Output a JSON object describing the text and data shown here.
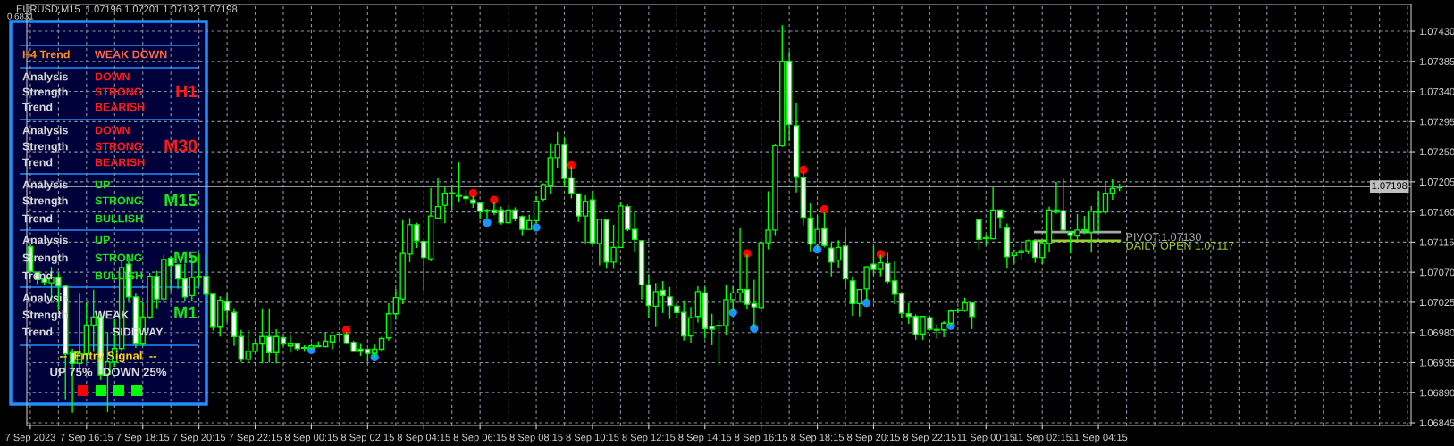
{
  "chart_data": [
    {
      "type": "candlestick",
      "title": "EURUSD,M15  1.07196 1.07201 1.07192 1.07198",
      "annotations": [
        "0.6831"
      ],
      "categories": [
        "7 Sep 2023",
        null,
        null,
        null,
        null,
        null,
        null,
        null,
        "7 Sep 16:15",
        null,
        null,
        null,
        null,
        null,
        null,
        null,
        "7 Sep 18:15",
        null,
        null,
        null,
        null,
        null,
        null,
        null,
        "7 Sep 20:15",
        null,
        null,
        null,
        null,
        null,
        null,
        null,
        "7 Sep 22:15",
        null,
        null,
        null,
        null,
        null,
        null,
        null,
        "8 Sep 00:15",
        null,
        null,
        null,
        null,
        null,
        null,
        null,
        "8 Sep 02:15",
        null,
        null,
        null,
        null,
        null,
        null,
        null,
        "8 Sep 04:15",
        null,
        null,
        null,
        null,
        null,
        null,
        null,
        "8 Sep 06:15",
        null,
        null,
        null,
        null,
        null,
        null,
        null,
        "8 Sep 08:15",
        null,
        null,
        null,
        null,
        null,
        null,
        null,
        "8 Sep 10:15",
        null,
        null,
        null,
        null,
        null,
        null,
        null,
        "8 Sep 12:15",
        null,
        null,
        null,
        null,
        null,
        null,
        null,
        "8 Sep 14:15",
        null,
        null,
        null,
        null,
        null,
        null,
        null,
        "8 Sep 16:15",
        null,
        null,
        null,
        null,
        null,
        null,
        null,
        "8 Sep 18:15",
        null,
        null,
        null,
        null,
        null,
        null,
        null,
        "8 Sep 20:15",
        null,
        null,
        null,
        null,
        null,
        null,
        null,
        "8 Sep 22:15",
        null,
        null,
        null,
        null,
        null,
        null,
        null,
        "11 Sep 00:15",
        null,
        null,
        null,
        null,
        null,
        null,
        null,
        "11 Sep 02:15",
        null,
        null,
        null,
        null,
        null,
        null,
        null,
        "11 Sep 04:15",
        null,
        null,
        null,
        null,
        null,
        null,
        null,
        null,
        null,
        null,
        null,
        null,
        null,
        null,
        null,
        null,
        null,
        null,
        null,
        null,
        null,
        null,
        null,
        null,
        null,
        null,
        null,
        null,
        null,
        null,
        null,
        null,
        null,
        null,
        null,
        null,
        null,
        null,
        null,
        null,
        null,
        null,
        null,
        null
      ],
      "ohlc": [
        [
          1.07108,
          1.0711,
          1.07068,
          1.07071
        ],
        [
          1.0707,
          1.0707,
          1.07053,
          1.07059
        ],
        [
          1.0706,
          1.07064,
          1.07051,
          1.07055
        ],
        [
          1.07054,
          1.07077,
          1.07028,
          1.07062
        ],
        [
          1.07062,
          1.07068,
          1.07015,
          1.07049
        ],
        [
          1.07049,
          1.07049,
          1.06881,
          1.06948
        ],
        [
          1.0695,
          1.06955,
          1.06861,
          1.06934
        ],
        [
          1.06934,
          1.07037,
          1.0692,
          1.06948
        ],
        [
          1.06948,
          1.07024,
          1.06937,
          1.06991
        ],
        [
          1.06991,
          1.07043,
          1.06952,
          1.07003
        ],
        [
          1.07003,
          1.07006,
          1.0691,
          1.06917
        ],
        [
          1.06918,
          1.0698,
          1.06862,
          1.06936
        ],
        [
          1.06936,
          1.06999,
          1.0693,
          1.06956
        ],
        [
          1.06956,
          1.07086,
          1.06952,
          1.07077
        ],
        [
          1.07082,
          1.07095,
          1.07028,
          1.07033
        ],
        [
          1.07033,
          1.07037,
          1.06958,
          1.06963
        ],
        [
          1.06963,
          1.07024,
          1.06961,
          1.07003
        ],
        [
          1.07003,
          1.07068,
          1.07001,
          1.07064
        ],
        [
          1.07064,
          1.07071,
          1.07017,
          1.0703
        ],
        [
          1.0703,
          1.07095,
          1.07026,
          1.07089
        ],
        [
          1.07091,
          1.07093,
          1.07042,
          1.0708
        ],
        [
          1.07081,
          1.07082,
          1.07046,
          1.0706
        ],
        [
          1.0706,
          1.07082,
          1.07028,
          1.07033
        ],
        [
          1.07035,
          1.07095,
          1.07028,
          1.07062
        ],
        [
          1.07062,
          1.07097,
          1.0705,
          1.07064
        ],
        [
          1.07064,
          1.07095,
          1.07035,
          1.07037
        ],
        [
          1.07037,
          1.07037,
          1.06984,
          1.06988
        ],
        [
          1.06988,
          1.07033,
          1.06975,
          1.07028
        ],
        [
          1.07026,
          1.07037,
          1.06997,
          1.07013
        ],
        [
          1.0701,
          1.07015,
          1.06961,
          1.06974
        ],
        [
          1.06974,
          1.06983,
          1.06937,
          1.0694
        ],
        [
          1.0694,
          1.06983,
          1.06935,
          1.06952
        ],
        [
          1.06952,
          1.0697,
          1.06948,
          1.06963
        ],
        [
          1.06963,
          1.07015,
          1.06935,
          1.06974
        ],
        [
          1.06974,
          1.07015,
          1.06936,
          1.0695
        ],
        [
          1.0695,
          1.06984,
          1.06935,
          1.06974
        ],
        [
          1.06972,
          1.06974,
          1.06961,
          1.06963
        ],
        [
          1.0696,
          1.06975,
          1.06951,
          1.06963
        ],
        [
          1.06963,
          1.06964,
          1.06953,
          1.06956
        ],
        [
          1.06957,
          1.0696,
          1.06952,
          1.06957
        ],
        [
          1.06957,
          1.06962,
          1.06955,
          1.0696
        ],
        [
          1.06959,
          1.06966,
          1.06959,
          1.0696
        ],
        [
          1.06959,
          1.0698,
          1.06959,
          1.06967
        ],
        [
          1.06966,
          1.06976,
          1.06956,
          1.06976
        ],
        [
          1.06977,
          1.0698,
          1.06969,
          1.06977
        ],
        [
          1.06977,
          1.0698,
          1.06964,
          1.06964
        ],
        [
          1.06965,
          1.06967,
          1.06952,
          1.06952
        ],
        [
          1.06955,
          1.06962,
          1.06946,
          1.06952
        ],
        [
          1.06955,
          1.06955,
          1.06937,
          1.06949
        ],
        [
          1.06949,
          1.06961,
          1.06943,
          1.06955
        ],
        [
          1.06955,
          1.06973,
          1.06952,
          1.06971
        ],
        [
          1.06972,
          1.07023,
          1.06969,
          1.07008
        ],
        [
          1.07008,
          1.07044,
          1.07,
          1.07032
        ],
        [
          1.0703,
          1.07147,
          1.07023,
          1.07098
        ],
        [
          1.07097,
          1.0715,
          1.07086,
          1.07141
        ],
        [
          1.07141,
          1.07143,
          1.07107,
          1.07117
        ],
        [
          1.07116,
          1.07116,
          1.07043,
          1.07092
        ],
        [
          1.0709,
          1.07195,
          1.07087,
          1.07154
        ],
        [
          1.07151,
          1.0721,
          1.07151,
          1.07168
        ],
        [
          1.0717,
          1.07198,
          1.07144,
          1.07188
        ],
        [
          1.07188,
          1.072,
          1.07164,
          1.07188
        ],
        [
          1.07184,
          1.07233,
          1.07176,
          1.07184
        ],
        [
          1.07183,
          1.07192,
          1.07171,
          1.0718
        ],
        [
          1.07178,
          1.07183,
          1.07167,
          1.07173
        ],
        [
          1.07173,
          1.07174,
          1.07151,
          1.07161
        ],
        [
          1.07162,
          1.07164,
          1.07151,
          1.07162
        ],
        [
          1.07163,
          1.07174,
          1.07156,
          1.07159
        ],
        [
          1.07163,
          1.07167,
          1.07142,
          1.07144
        ],
        [
          1.07144,
          1.07169,
          1.07143,
          1.07163
        ],
        [
          1.07163,
          1.07166,
          1.07147,
          1.0715
        ],
        [
          1.07153,
          1.07154,
          1.07125,
          1.07134
        ],
        [
          1.07134,
          1.07155,
          1.07134,
          1.07147
        ],
        [
          1.07147,
          1.07183,
          1.07144,
          1.07176
        ],
        [
          1.07179,
          1.07202,
          1.07177,
          1.07201
        ],
        [
          1.072,
          1.07262,
          1.07188,
          1.07241
        ],
        [
          1.07241,
          1.07279,
          1.07227,
          1.07261
        ],
        [
          1.07261,
          1.0727,
          1.07198,
          1.0721
        ],
        [
          1.07211,
          1.07227,
          1.07181,
          1.07188
        ],
        [
          1.07187,
          1.07187,
          1.07146,
          1.07154
        ],
        [
          1.07154,
          1.07184,
          1.07114,
          1.07176
        ],
        [
          1.07178,
          1.07191,
          1.07114,
          1.07114
        ],
        [
          1.07113,
          1.07149,
          1.07081,
          1.07149
        ],
        [
          1.07148,
          1.07148,
          1.07076,
          1.07085
        ],
        [
          1.07085,
          1.0714,
          1.07076,
          1.07107
        ],
        [
          1.07107,
          1.07174,
          1.07107,
          1.07169
        ],
        [
          1.07168,
          1.0717,
          1.07132,
          1.07134
        ],
        [
          1.07134,
          1.0716,
          1.07101,
          1.07119
        ],
        [
          1.07117,
          1.07117,
          1.0703,
          1.07051
        ],
        [
          1.07051,
          1.07065,
          1.07004,
          1.0702
        ],
        [
          1.07019,
          1.07053,
          1.06989,
          1.07041
        ],
        [
          1.07043,
          1.07056,
          1.0701,
          1.07035
        ],
        [
          1.07033,
          1.07047,
          1.07001,
          1.0702
        ],
        [
          1.07019,
          1.07023,
          1.07003,
          1.0701
        ],
        [
          1.0701,
          1.07027,
          1.06969,
          1.06975
        ],
        [
          1.06975,
          1.07017,
          1.06965,
          1.07002
        ],
        [
          1.07004,
          1.07048,
          1.06996,
          1.07041
        ],
        [
          1.07039,
          1.07047,
          1.06972,
          1.06986
        ],
        [
          1.06989,
          1.07007,
          1.06962,
          1.06985
        ],
        [
          1.0699,
          1.06997,
          1.06932,
          1.0699
        ],
        [
          1.0699,
          1.0705,
          1.06978,
          1.07029
        ],
        [
          1.07029,
          1.07048,
          1.07013,
          1.07039
        ],
        [
          1.07039,
          1.07135,
          1.07025,
          1.07044
        ],
        [
          1.07044,
          1.07096,
          1.07016,
          1.07022
        ],
        [
          1.07023,
          1.07058,
          1.06987,
          1.07018
        ],
        [
          1.07017,
          1.07114,
          1.07012,
          1.07114
        ],
        [
          1.07114,
          1.0719,
          1.07105,
          1.07133
        ],
        [
          1.07133,
          1.07261,
          1.07125,
          1.07259
        ],
        [
          1.07259,
          1.07438,
          1.07258,
          1.07385
        ],
        [
          1.07385,
          1.07399,
          1.07267,
          1.07291
        ],
        [
          1.07289,
          1.07322,
          1.0719,
          1.07213
        ],
        [
          1.07212,
          1.0722,
          1.07141,
          1.07152
        ],
        [
          1.07151,
          1.07172,
          1.07102,
          1.07112
        ],
        [
          1.07112,
          1.07154,
          1.07104,
          1.07134
        ],
        [
          1.07135,
          1.07158,
          1.07108,
          1.0711
        ],
        [
          1.07106,
          1.07114,
          1.07065,
          1.07085
        ],
        [
          1.07088,
          1.07117,
          1.07077,
          1.07107
        ],
        [
          1.07109,
          1.07134,
          1.07045,
          1.0706
        ],
        [
          1.07057,
          1.07063,
          1.07006,
          1.07023
        ],
        [
          1.07023,
          1.07044,
          1.07005,
          1.07044
        ],
        [
          1.07045,
          1.07078,
          1.07029,
          1.07078
        ],
        [
          1.07082,
          1.07108,
          1.07067,
          1.07074
        ],
        [
          1.07074,
          1.07095,
          1.07065,
          1.07084
        ],
        [
          1.07083,
          1.07098,
          1.07054,
          1.07056
        ],
        [
          1.07057,
          1.07085,
          1.07023,
          1.07037
        ],
        [
          1.07038,
          1.07038,
          1.07003,
          1.07009
        ],
        [
          1.07008,
          1.07023,
          1.06994,
          1.07004
        ],
        [
          1.07004,
          1.07006,
          1.0697,
          1.06977
        ],
        [
          1.06978,
          1.07004,
          1.0697,
          1.07004
        ],
        [
          1.07002,
          1.07004,
          1.06984,
          1.06985
        ],
        [
          1.06984,
          1.06991,
          1.06972,
          1.06984
        ],
        [
          1.06984,
          1.06996,
          1.06974,
          1.06994
        ],
        [
          1.06994,
          1.07014,
          1.0699,
          1.07012
        ],
        [
          1.07013,
          1.07016,
          1.0701,
          1.07013
        ],
        [
          1.07013,
          1.07031,
          1.07012,
          1.07024
        ],
        [
          1.07024,
          1.07024,
          1.06986,
          1.07004
        ],
        [
          1.07148,
          1.07148,
          1.07105,
          1.07119
        ],
        [
          1.07121,
          1.07125,
          1.07111,
          1.07121
        ],
        [
          1.0712,
          1.07196,
          1.0712,
          1.07163
        ],
        [
          1.07163,
          1.07163,
          1.07136,
          1.07152
        ],
        [
          1.07136,
          1.07142,
          1.07076,
          1.07093
        ],
        [
          1.07095,
          1.07103,
          1.07084,
          1.071
        ],
        [
          1.07099,
          1.07116,
          1.07089,
          1.07102
        ],
        [
          1.07102,
          1.07118,
          1.07098,
          1.07117
        ],
        [
          1.07117,
          1.07118,
          1.07085,
          1.07092
        ],
        [
          1.07092,
          1.07118,
          1.07083,
          1.07113
        ],
        [
          1.07113,
          1.07167,
          1.07101,
          1.07163
        ],
        [
          1.0716,
          1.07204,
          1.07158,
          1.07163
        ],
        [
          1.07162,
          1.07209,
          1.07133,
          1.07133
        ],
        [
          1.0713,
          1.0713,
          1.07099,
          1.07125
        ],
        [
          1.07124,
          1.07156,
          1.07118,
          1.07133
        ],
        [
          1.07133,
          1.07153,
          1.07128,
          1.07133
        ],
        [
          1.0713,
          1.07168,
          1.071,
          1.07161
        ],
        [
          1.0716,
          1.0719,
          1.07131,
          1.0716
        ],
        [
          1.0716,
          1.07205,
          1.07158,
          1.07188
        ],
        [
          1.07188,
          1.07208,
          1.07179,
          1.07195
        ],
        [
          1.07196,
          1.07201,
          1.07192,
          1.07198
        ],
        null,
        null,
        null,
        null,
        null,
        null,
        null,
        null,
        null,
        null,
        null,
        null,
        null,
        null,
        null,
        null,
        null,
        null,
        null,
        null,
        null,
        null,
        null,
        null,
        null,
        null,
        null,
        null,
        null,
        null,
        null,
        null,
        null,
        null,
        null,
        null,
        null,
        null,
        null,
        null,
        null
      ],
      "color": "#00ff00",
      "series": [
        {
          "type": "scatter",
          "marker": "circle",
          "color": "#ff0000",
          "values": [
            null,
            null,
            null,
            null,
            null,
            null,
            null,
            null,
            null,
            null,
            null,
            null,
            null,
            null,
            null,
            null,
            null,
            null,
            null,
            null,
            null,
            null,
            null,
            null,
            null,
            null,
            null,
            null,
            null,
            null,
            null,
            null,
            null,
            null,
            null,
            null,
            null,
            null,
            null,
            null,
            null,
            null,
            null,
            null,
            null,
            1.06984,
            null,
            null,
            null,
            null,
            null,
            null,
            null,
            null,
            null,
            null,
            null,
            null,
            null,
            null,
            null,
            null,
            null,
            1.07188,
            null,
            null,
            1.07178,
            null,
            null,
            null,
            null,
            null,
            null,
            null,
            null,
            null,
            null,
            1.0723,
            null,
            null,
            null,
            null,
            null,
            null,
            null,
            null,
            null,
            null,
            null,
            null,
            null,
            null,
            null,
            null,
            null,
            null,
            null,
            null,
            null,
            null,
            null,
            null,
            1.07098,
            null,
            null,
            null,
            null,
            null,
            null,
            null,
            1.07223,
            null,
            null,
            1.07164,
            null,
            null,
            null,
            null,
            null,
            null,
            null,
            1.07097,
            null,
            null,
            null,
            null,
            null,
            null,
            null,
            null,
            null,
            null,
            null,
            null,
            null,
            null,
            null,
            null,
            null,
            null,
            null,
            null,
            null,
            null,
            null,
            null,
            null,
            null,
            null,
            null,
            null,
            null,
            null,
            null,
            null,
            null,
            null,
            null,
            null,
            null,
            null,
            null,
            null,
            null,
            null,
            null,
            null,
            null,
            null,
            null,
            null,
            null,
            null,
            null,
            null,
            null,
            null,
            null,
            null,
            null,
            null,
            null,
            null,
            null,
            null,
            null,
            null,
            null,
            null,
            null,
            null,
            null,
            null,
            null,
            null,
            null,
            null
          ]
        },
        {
          "type": "scatter",
          "marker": "circle",
          "color": "#1e8fff",
          "values": [
            null,
            null,
            null,
            null,
            null,
            null,
            null,
            null,
            null,
            null,
            null,
            null,
            null,
            null,
            null,
            null,
            null,
            null,
            null,
            null,
            null,
            null,
            null,
            null,
            null,
            null,
            null,
            null,
            null,
            null,
            null,
            null,
            null,
            null,
            null,
            null,
            null,
            null,
            null,
            null,
            1.06954,
            null,
            null,
            null,
            null,
            null,
            null,
            null,
            null,
            1.06943,
            null,
            null,
            null,
            null,
            null,
            null,
            null,
            null,
            null,
            null,
            null,
            null,
            null,
            null,
            null,
            1.07144,
            null,
            null,
            null,
            null,
            null,
            null,
            1.07137,
            null,
            null,
            null,
            null,
            null,
            null,
            null,
            null,
            null,
            null,
            null,
            null,
            null,
            null,
            null,
            null,
            null,
            null,
            null,
            null,
            null,
            null,
            null,
            null,
            null,
            null,
            null,
            1.0701,
            null,
            null,
            1.06986,
            null,
            null,
            null,
            null,
            null,
            null,
            null,
            null,
            1.07104,
            null,
            null,
            null,
            null,
            null,
            null,
            1.07024,
            null,
            null,
            null,
            null,
            null,
            null,
            null,
            null,
            null,
            null,
            null,
            1.0699,
            null,
            null,
            null,
            null,
            null,
            null,
            null,
            null,
            null,
            null,
            null,
            null,
            null,
            null,
            null,
            null,
            null,
            null,
            null,
            null,
            null,
            null,
            null,
            null,
            null,
            null,
            null,
            null,
            null,
            null,
            null,
            null,
            null,
            null,
            null,
            null,
            null,
            null,
            null,
            null,
            null,
            null,
            null,
            null,
            null,
            null,
            null,
            null,
            null,
            null,
            null,
            null,
            null,
            null,
            null,
            null,
            null,
            null,
            null,
            null,
            null,
            null,
            null,
            null,
            null
          ]
        },
        {
          "type": "line",
          "name": "PIVOT:1.07130",
          "color": "#a8a8a8",
          "values": [
            null,
            null,
            null,
            null,
            null,
            null,
            null,
            null,
            null,
            null,
            null,
            null,
            null,
            null,
            null,
            null,
            null,
            null,
            null,
            null,
            null,
            null,
            null,
            null,
            null,
            null,
            null,
            null,
            null,
            null,
            null,
            null,
            null,
            null,
            null,
            null,
            null,
            null,
            null,
            null,
            null,
            null,
            null,
            null,
            null,
            null,
            null,
            null,
            null,
            null,
            null,
            null,
            null,
            null,
            null,
            null,
            null,
            null,
            null,
            null,
            null,
            null,
            null,
            null,
            null,
            null,
            null,
            null,
            null,
            null,
            null,
            null,
            null,
            null,
            null,
            null,
            null,
            null,
            null,
            null,
            null,
            null,
            null,
            null,
            null,
            null,
            null,
            null,
            null,
            null,
            null,
            null,
            null,
            null,
            null,
            null,
            null,
            null,
            null,
            null,
            null,
            null,
            null,
            null,
            null,
            null,
            null,
            null,
            null,
            null,
            null,
            null,
            null,
            null,
            null,
            null,
            null,
            null,
            null,
            null,
            null,
            null,
            null,
            null,
            null,
            null,
            null,
            null,
            null,
            null,
            null,
            null,
            null,
            null,
            null,
            null,
            null,
            null,
            null,
            null,
            null,
            null,
            null,
            1.0713,
            1.0713,
            1.0713,
            1.0713,
            1.0713,
            1.0713,
            1.0713,
            1.0713,
            1.0713,
            1.0713,
            1.0713,
            1.0713,
            1.0713,
            null,
            null,
            null,
            null,
            null,
            null,
            null,
            null,
            null,
            null,
            null,
            null,
            null,
            null,
            null,
            null,
            null,
            null,
            null,
            null,
            null,
            null,
            null,
            null,
            null,
            null,
            null,
            null,
            null,
            null,
            null,
            null,
            null,
            null,
            null,
            null,
            null,
            null,
            null,
            null,
            null
          ]
        },
        {
          "type": "line",
          "name": "DAILY OPEN 1.07117",
          "color": "#9acd32",
          "values": [
            null,
            null,
            null,
            null,
            null,
            null,
            null,
            null,
            null,
            null,
            null,
            null,
            null,
            null,
            null,
            null,
            null,
            null,
            null,
            null,
            null,
            null,
            null,
            null,
            null,
            null,
            null,
            null,
            null,
            null,
            null,
            null,
            null,
            null,
            null,
            null,
            null,
            null,
            null,
            null,
            null,
            null,
            null,
            null,
            null,
            null,
            null,
            null,
            null,
            null,
            null,
            null,
            null,
            null,
            null,
            null,
            null,
            null,
            null,
            null,
            null,
            null,
            null,
            null,
            null,
            null,
            null,
            null,
            null,
            null,
            null,
            null,
            null,
            null,
            null,
            null,
            null,
            null,
            null,
            null,
            null,
            null,
            null,
            null,
            null,
            null,
            null,
            null,
            null,
            null,
            null,
            null,
            null,
            null,
            null,
            null,
            null,
            null,
            null,
            null,
            null,
            null,
            null,
            null,
            null,
            null,
            null,
            null,
            null,
            null,
            null,
            null,
            null,
            null,
            null,
            null,
            null,
            null,
            null,
            null,
            null,
            null,
            null,
            null,
            null,
            null,
            null,
            null,
            null,
            null,
            null,
            null,
            null,
            null,
            null,
            null,
            null,
            null,
            null,
            null,
            null,
            null,
            null,
            1.07117,
            1.07117,
            1.07117,
            1.07117,
            1.07117,
            1.07117,
            1.07117,
            1.07117,
            1.07117,
            1.07117,
            1.07117,
            1.07117,
            1.07117,
            null,
            null,
            null,
            null,
            null,
            null,
            null,
            null,
            null,
            null,
            null,
            null,
            null,
            null,
            null,
            null,
            null,
            null,
            null,
            null,
            null,
            null,
            null,
            null,
            null,
            null,
            null,
            null,
            null,
            null,
            null,
            null,
            null,
            null,
            null,
            null,
            null,
            null,
            null,
            null,
            null
          ]
        }
      ],
      "ylim": [
        1.06841,
        1.0747
      ],
      "yticks": [
        {
          "value": 1.0743,
          "label": "1.07430"
        },
        {
          "value": 1.07385,
          "label": "1.07385"
        },
        {
          "value": 1.0734,
          "label": "1.07340"
        },
        {
          "value": 1.07295,
          "label": "1.07295"
        },
        {
          "value": 1.0725,
          "label": "1.07250"
        },
        {
          "value": 1.07205,
          "label": "1.07205"
        },
        {
          "value": 1.0716,
          "label": "1.07160"
        },
        {
          "value": 1.07115,
          "label": "1.07115"
        },
        {
          "value": 1.0707,
          "label": "1.07070"
        },
        {
          "value": 1.07025,
          "label": "1.07025"
        },
        {
          "value": 1.0698,
          "label": "1.06980"
        },
        {
          "value": 1.06935,
          "label": "1.06935"
        },
        {
          "value": 1.0689,
          "label": "1.06890"
        },
        {
          "value": 1.06845,
          "label": "1.06845"
        }
      ],
      "ref_lines": [
        {
          "axis": "y",
          "value": 1.07198,
          "label": "1.07198",
          "color": "#c0c0c0",
          "line_style": "solid"
        }
      ],
      "grid": true
    },
    {
      "type": "other",
      "annotations": [
        "H4 Trend",
        "WEAK DOWN",
        "Analysis",
        "DOWN",
        "Strength",
        "STRONG",
        "H1",
        "Trend",
        "BEARISH",
        "Analysis",
        "DOWN",
        "Strength",
        "STRONG",
        "M30",
        "Trend",
        "BEARISH",
        "Analysis",
        "UP",
        "Strength",
        "STRONG",
        "M15",
        "Trend",
        "BULLISH",
        "Analysis",
        "UP",
        "Strength",
        "STRONG",
        "M5",
        "Trend",
        "BULLISH",
        "Analysis",
        "Strength",
        "WEAK",
        "M1",
        "Trend",
        "SIDEWAY",
        "--  Entry Signal  --",
        "UP 75%   DOWN 25%"
      ],
      "colors": [
        "#ff8c1a",
        "#ff6347",
        "#d8d8d8",
        "#ff1a1a",
        "#d8d8d8",
        "#ff1a1a",
        "#ff1a1a",
        "#d8d8d8",
        "#ff1a1a",
        "#d8d8d8",
        "#ff1a1a",
        "#d8d8d8",
        "#ff1a1a",
        "#ff1a1a",
        "#d8d8d8",
        "#ff1a1a",
        "#d8d8d8",
        "#19e619",
        "#d8d8d8",
        "#19e619",
        "#19e619",
        "#d8d8d8",
        "#19e619",
        "#d8d8d8",
        "#19e619",
        "#d8d8d8",
        "#19e619",
        "#19e619",
        "#d8d8d8",
        "#19e619",
        "#d8d8d8",
        "#d8d8d8",
        "#d8d8d8",
        "#19e619",
        "#d8d8d8",
        "#d8d8d8",
        "#ffd21a",
        "#d8d8d8"
      ]
    }
  ]
}
